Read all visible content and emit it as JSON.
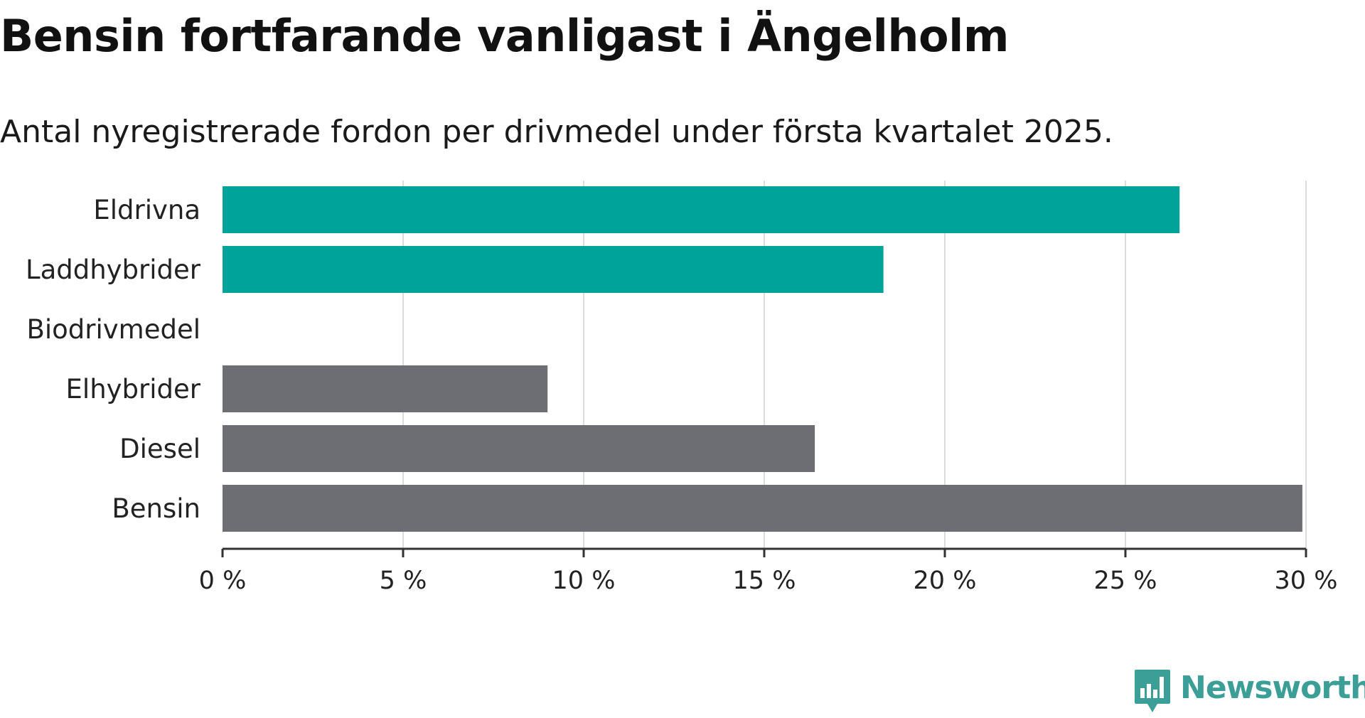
{
  "header": {
    "title": "Bensin fortfarande vanligast i Ängelholm",
    "subtitle": "Antal nyregistrerade fordon per drivmedel under första kvartalet 2025."
  },
  "chart_data": {
    "type": "bar",
    "orientation": "horizontal",
    "categories": [
      "Eldrivna",
      "Laddhybrider",
      "Biodrivmedel",
      "Elhybrider",
      "Diesel",
      "Bensin"
    ],
    "values": [
      26.5,
      18.3,
      0,
      9.0,
      16.4,
      29.9
    ],
    "bar_colors": [
      "#00a39a",
      "#00a39a",
      "#6d6d74",
      "#6d6d74",
      "#6d6d74",
      "#6d6d74"
    ],
    "xlim": [
      0,
      30
    ],
    "x_ticks": [
      0,
      5,
      10,
      15,
      20,
      25,
      30
    ],
    "x_tick_labels": [
      "0 %",
      "5 %",
      "10 %",
      "15 %",
      "20 %",
      "25 %",
      "30 %"
    ],
    "grid": true,
    "grid_color": "#dcdcdc",
    "axis_color": "#333333",
    "xlabel": "",
    "ylabel": ""
  },
  "brand": {
    "name": "Newsworthy",
    "color": "#3b9e97"
  }
}
